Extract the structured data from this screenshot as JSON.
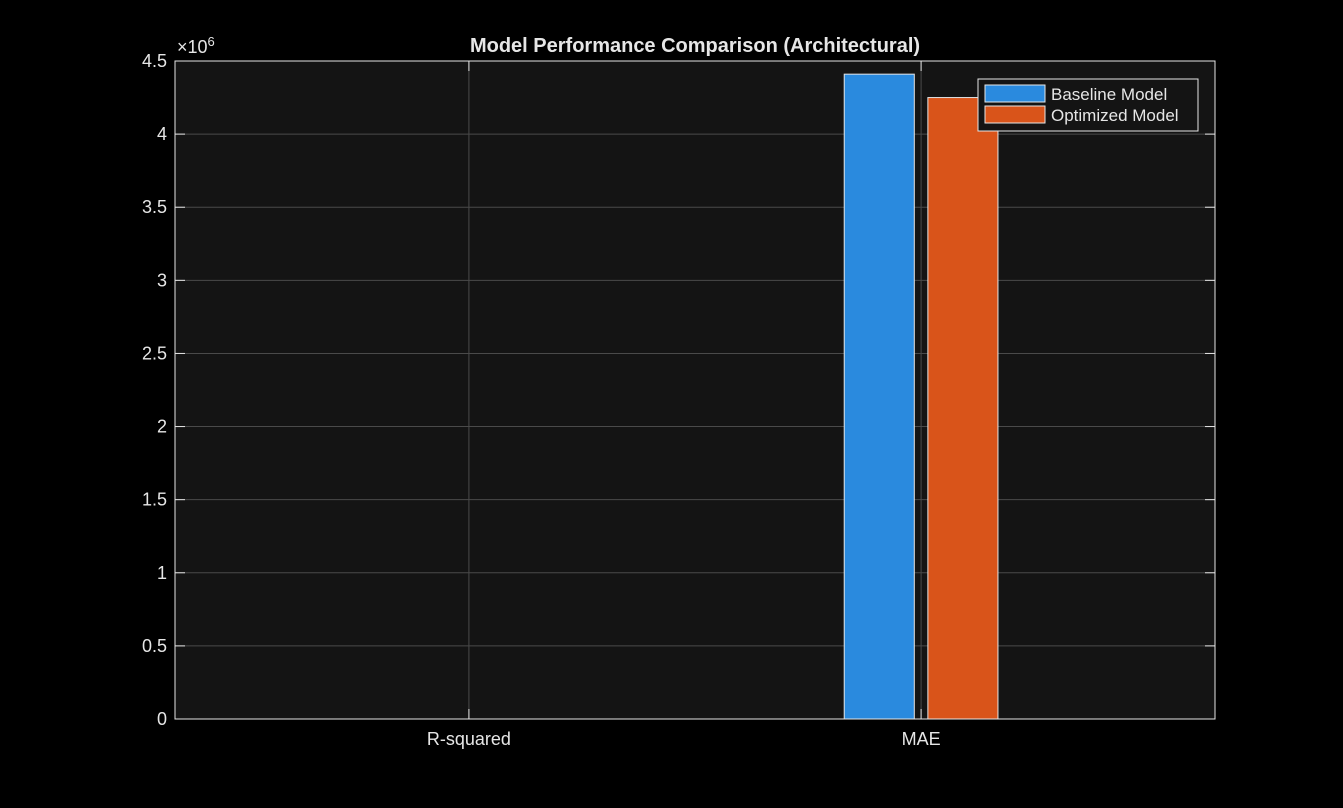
{
  "chart_data": {
    "type": "bar",
    "title": "Model Performance Comparison (Architectural)",
    "xlabel": "",
    "ylabel": "",
    "categories": [
      "R-squared",
      "MAE"
    ],
    "series": [
      {
        "name": "Baseline Model",
        "values": [
          0.85,
          4410000
        ],
        "color": "#2a8ade"
      },
      {
        "name": "Optimized Model",
        "values": [
          0.87,
          4250000
        ],
        "color": "#d9541a"
      }
    ],
    "ylim": [
      0,
      4500000
    ],
    "yticks": [
      0,
      500000,
      1000000,
      1500000,
      2000000,
      2500000,
      3000000,
      3500000,
      4000000,
      4500000
    ],
    "ytick_labels": [
      "0",
      "0.5",
      "1",
      "1.5",
      "2",
      "2.5",
      "3",
      "3.5",
      "4",
      "4.5"
    ],
    "y_exponent_base": "×10",
    "y_exponent_power": "6",
    "grid": true,
    "legend_position": "top-right",
    "colors": {
      "figure_bg": "#000000",
      "axes_bg": "#141414",
      "axis": "#e6e6e6",
      "grid": "#4a4a4a"
    }
  }
}
